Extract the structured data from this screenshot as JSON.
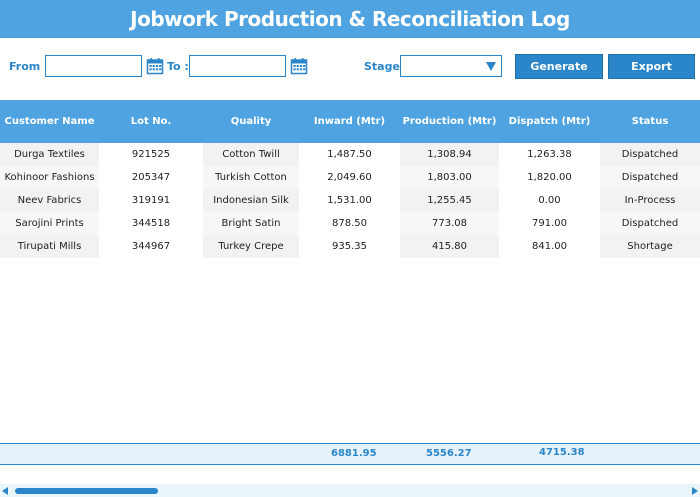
{
  "title": "Jobwork Production & Reconciliation Log",
  "filters": {
    "from_label": "From :",
    "from_value": "",
    "to_label": "To :",
    "to_value": "",
    "stage_label": "Stage:",
    "stage_value": "",
    "generate_label": "Generate",
    "export_label": "Export"
  },
  "columns": [
    "Customer Name",
    "Lot No.",
    "Quality",
    "Inward (Mtr)",
    "Production (Mtr)",
    "Dispatch (Mtr)",
    "Status"
  ],
  "rows": [
    [
      "Durga Textiles",
      "921525",
      "Cotton Twill",
      "1,487.50",
      "1,308.94",
      "1,263.38",
      "Dispatched"
    ],
    [
      "Kohinoor Fashions",
      "205347",
      "Turkish Cotton",
      "2,049.60",
      "1,803.00",
      "1,820.00",
      "Dispatched"
    ],
    [
      "Neev Fabrics",
      "319191",
      "Indonesian Silk",
      "1,531.00",
      "1,255.45",
      "0.00",
      "In-Process"
    ],
    [
      "Sarojini Prints",
      "344518",
      "Bright Satin",
      "878.50",
      "773.08",
      "791.00",
      "Dispatched"
    ],
    [
      "Tirupati Mills",
      "344967",
      "Turkey Crepe",
      "935.35",
      "415.80",
      "841.00",
      "Shortage"
    ]
  ],
  "totals": {
    "inward": "6881.95",
    "production": "5556.27",
    "dispatch": "4715.38"
  },
  "colors": {
    "accent": "#4ea3e0",
    "accent_dark": "#2b86c9"
  }
}
